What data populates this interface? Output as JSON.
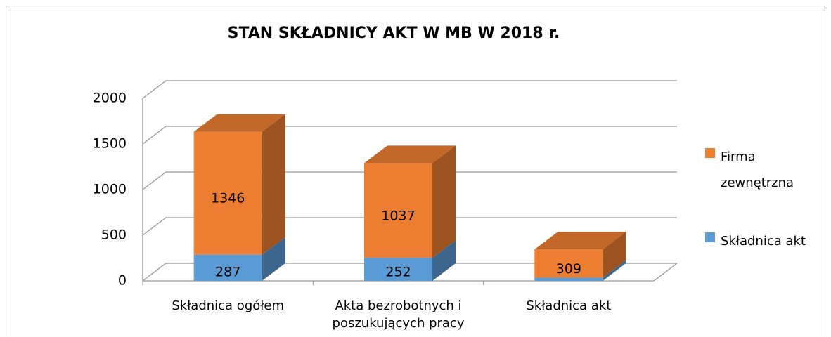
{
  "chart_data": {
    "type": "bar3d_stacked",
    "title": "STAN SKŁADNICY AKT W MB W 2018 r.",
    "categories": [
      "Składnica ogółem",
      "Akta bezrobotnych i poszukujących pracy",
      "Składnica akt"
    ],
    "series": [
      {
        "name": "Składnica akt",
        "color": "#5B9BD5",
        "values": [
          287,
          252,
          35
        ]
      },
      {
        "name": "Firma zewnętrzna",
        "color": "#ED7D31",
        "values": [
          1346,
          1037,
          309
        ]
      }
    ],
    "ylim": [
      0,
      2000
    ],
    "yticks": [
      0,
      500,
      1000,
      1500,
      2000
    ],
    "grid": true,
    "legend": "right"
  }
}
